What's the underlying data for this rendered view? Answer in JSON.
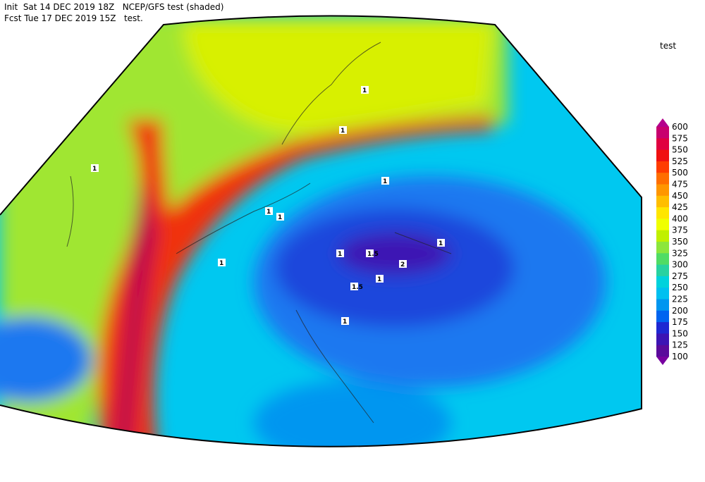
{
  "header": {
    "line1": "Init  Sat 14 DEC 2019 18Z   NCEP/GFS test (shaded)",
    "line2": "Fcst Tue 17 DEC 2019 15Z   test."
  },
  "legend": {
    "title": "test",
    "levels": [
      600,
      575,
      550,
      525,
      500,
      475,
      450,
      425,
      400,
      375,
      350,
      325,
      300,
      275,
      250,
      225,
      200,
      175,
      150,
      125,
      100
    ],
    "colors": [
      "#c8006e",
      "#e00040",
      "#f01010",
      "#ff3c00",
      "#ff6e00",
      "#ff9600",
      "#ffbe00",
      "#ffe600",
      "#f0ff00",
      "#c0f000",
      "#8ce63c",
      "#50dc64",
      "#28d2a0",
      "#00d2dc",
      "#00c0f0",
      "#0096f0",
      "#0064f0",
      "#1e28d2",
      "#3c14b4",
      "#5a0a9b"
    ],
    "top_color": "#b4008c",
    "bottom_color": "#7800a0"
  },
  "contour_labels": [
    1,
    1,
    1,
    1,
    1,
    1,
    1.5,
    2,
    1.5,
    1,
    1,
    1,
    1,
    1
  ]
}
